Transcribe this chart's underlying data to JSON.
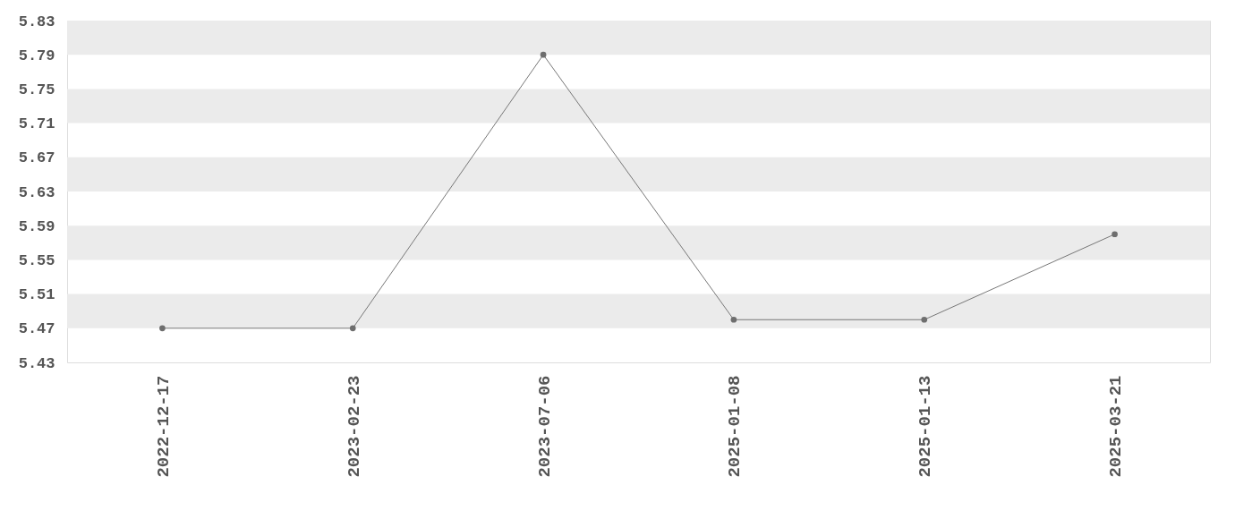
{
  "chart_data": {
    "type": "line",
    "categories": [
      "2022-12-17",
      "2023-02-23",
      "2023-07-06",
      "2025-01-08",
      "2025-01-13",
      "2025-03-21"
    ],
    "series": [
      {
        "color": "#777777",
        "values": [
          5.47,
          5.47,
          5.79,
          5.48,
          5.48,
          5.58
        ]
      }
    ],
    "ylim": [
      5.43,
      5.83
    ],
    "yticks": [
      5.43,
      5.47,
      5.51,
      5.55,
      5.59,
      5.63,
      5.67,
      5.71,
      5.75,
      5.79,
      5.83
    ],
    "bands": [
      {
        "axis": "y",
        "from": 5.79,
        "to": 5.83,
        "color": "#ebebeb"
      },
      {
        "axis": "y",
        "from": 5.71,
        "to": 5.75,
        "color": "#ebebeb"
      },
      {
        "axis": "y",
        "from": 5.63,
        "to": 5.67,
        "color": "#ebebeb"
      },
      {
        "axis": "y",
        "from": 5.55,
        "to": 5.59,
        "color": "#ebebeb"
      },
      {
        "axis": "y",
        "from": 5.47,
        "to": 5.51,
        "color": "#ebebeb"
      }
    ],
    "marker": "circle",
    "line_style": "solid"
  }
}
